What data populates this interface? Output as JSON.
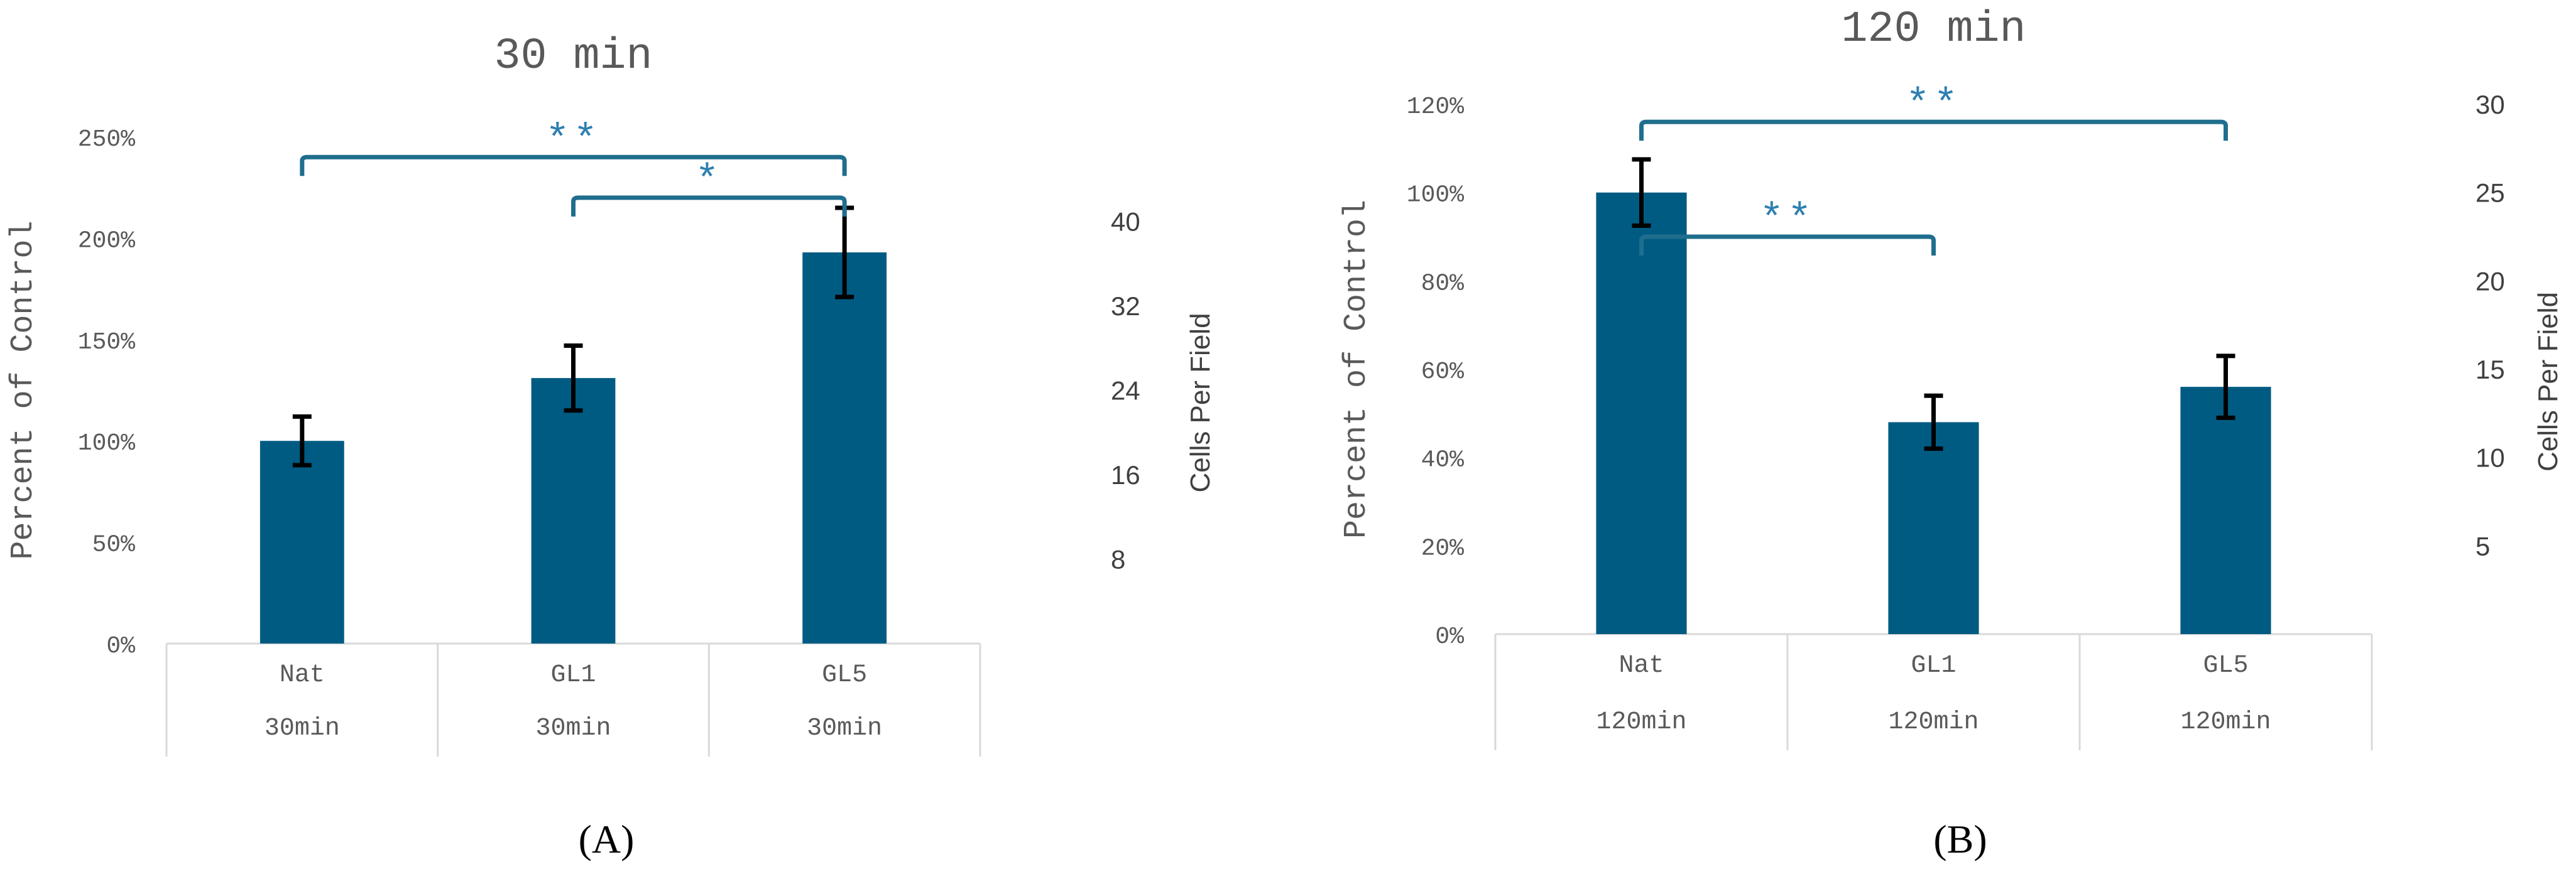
{
  "figure": {
    "panel_labels": [
      "(A)",
      "(B)"
    ]
  },
  "colors": {
    "bar": "#005b83",
    "bracket": "#1f6e8e",
    "star": "#2d7fb0",
    "axis_text": "#595959",
    "grid": "#d9d9d9",
    "error": "#000000"
  },
  "chart_data": [
    {
      "type": "bar",
      "title": "30 min",
      "ylabel": "Percent of Control",
      "y2label": "Cells Per Field",
      "ylim": [
        0,
        250
      ],
      "yticks": [
        "0%",
        "50%",
        "100%",
        "150%",
        "200%",
        "250%"
      ],
      "y2lim": [
        0,
        48
      ],
      "y2ticks": [
        "8",
        "16",
        "24",
        "32",
        "40"
      ],
      "y2tick_values": [
        8,
        16,
        24,
        32,
        40
      ],
      "categories": [
        "Nat",
        "GL1",
        "GL5"
      ],
      "subcategories": [
        "30min",
        "30min",
        "30min"
      ],
      "values": [
        100,
        131,
        193
      ],
      "errors": [
        12,
        16,
        22
      ],
      "significance": [
        {
          "from": 0,
          "to": 2,
          "label": "**",
          "y": 240
        },
        {
          "from": 1,
          "to": 2,
          "label": "*",
          "y": 220
        }
      ],
      "grid": false
    },
    {
      "type": "bar",
      "title": "120 min",
      "ylabel": "Percent of Control",
      "y2label": "Cells Per Field",
      "ylim": [
        0,
        120
      ],
      "yticks": [
        "0%",
        "20%",
        "40%",
        "60%",
        "80%",
        "100%",
        "120%"
      ],
      "y2lim": [
        0,
        30
      ],
      "y2ticks": [
        "5",
        "10",
        "15",
        "20",
        "25",
        "30"
      ],
      "y2tick_values": [
        5,
        10,
        15,
        20,
        25,
        30
      ],
      "categories": [
        "Nat",
        "GL1",
        "GL5"
      ],
      "subcategories": [
        "120min",
        "120min",
        "120min"
      ],
      "values": [
        100,
        48,
        56
      ],
      "errors": [
        7.5,
        6,
        7
      ],
      "significance": [
        {
          "from": 0,
          "to": 1,
          "label": "**",
          "y": 90
        },
        {
          "from": 0,
          "to": 2,
          "label": "**",
          "y": 116
        }
      ],
      "grid": false
    }
  ]
}
